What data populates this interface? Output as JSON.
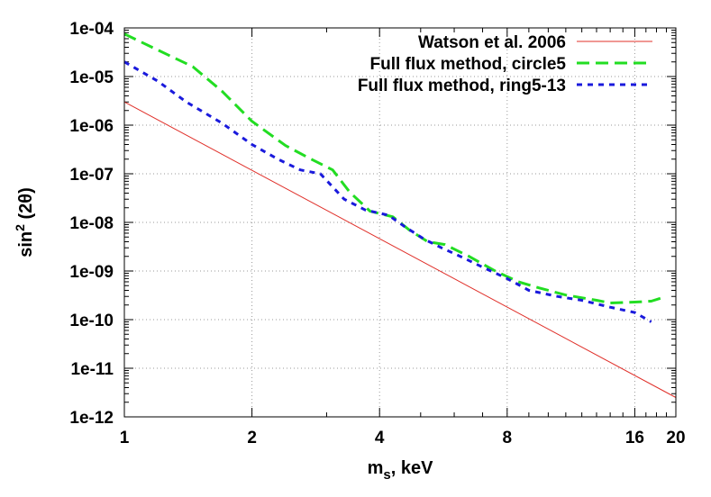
{
  "chart_data": {
    "type": "line",
    "xlabel_main": "m",
    "xlabel_sub": "s",
    "xlabel_rest": ", keV",
    "ylabel_main": "sin",
    "ylabel_sup": "2",
    "ylabel_rest": " (2θ)",
    "x_scale": "log2",
    "y_scale": "log10",
    "xlim": [
      1,
      20
    ],
    "ylim": [
      1e-12,
      0.0001
    ],
    "x_ticks": [
      1,
      2,
      4,
      8,
      16,
      20
    ],
    "x_tick_labels": [
      "1",
      "2",
      "4",
      "8",
      "16",
      "20"
    ],
    "y_ticks": [
      1e-12,
      1e-11,
      1e-10,
      1e-09,
      1e-08,
      1e-07,
      1e-06,
      1e-05,
      0.0001
    ],
    "y_tick_labels": [
      "1e-12",
      "1e-11",
      "1e-10",
      "1e-09",
      "1e-08",
      "1e-07",
      "1e-06",
      "1e-05",
      "1e-04"
    ],
    "grid": true,
    "legend_position": "top-right",
    "series": [
      {
        "name": "Watson et al. 2006",
        "color": "#e0302a",
        "style": "solid",
        "x": [
          1,
          20
        ],
        "y": [
          3e-06,
          2.5e-12
        ]
      },
      {
        "name": "Full flux method, circle5",
        "color": "#22dd22",
        "style": "long-dash",
        "x": [
          1,
          1.2,
          1.45,
          1.7,
          2.0,
          2.4,
          2.7,
          3.1,
          3.4,
          3.8,
          4.3,
          4.7,
          5.2,
          5.7,
          6.5,
          7.5,
          8.5,
          9.5,
          11,
          13,
          14,
          16,
          17.5,
          19
        ],
        "y": [
          7.5e-05,
          3.5e-05,
          1.6e-05,
          5e-06,
          1.2e-06,
          3.8e-07,
          2.2e-07,
          1.2e-07,
          4.2e-08,
          1.7e-08,
          1.3e-08,
          7e-09,
          4e-09,
          3.5e-09,
          2e-09,
          1e-09,
          6e-10,
          4.5e-10,
          3.2e-10,
          2.5e-10,
          2.2e-10,
          2.3e-10,
          2.4e-10,
          3e-10
        ]
      },
      {
        "name": "Full flux method, ring5-13",
        "color": "#1a1adc",
        "style": "short-dash",
        "x": [
          1,
          1.2,
          1.4,
          1.7,
          2.0,
          2.3,
          2.6,
          2.9,
          3.3,
          3.7,
          4.2,
          4.6,
          5.1,
          5.6,
          6.2,
          7.0,
          8.0,
          9.0,
          10.5,
          12,
          14,
          16,
          17.5
        ],
        "y": [
          2e-05,
          8e-06,
          3e-06,
          1.1e-06,
          4e-07,
          2e-07,
          1.2e-07,
          1e-07,
          3e-08,
          1.8e-08,
          1.4e-08,
          8e-09,
          4.5e-09,
          3e-09,
          2e-09,
          1.2e-09,
          7e-10,
          4e-10,
          3e-10,
          2.5e-10,
          1.8e-10,
          1.4e-10,
          9e-11
        ]
      }
    ]
  }
}
